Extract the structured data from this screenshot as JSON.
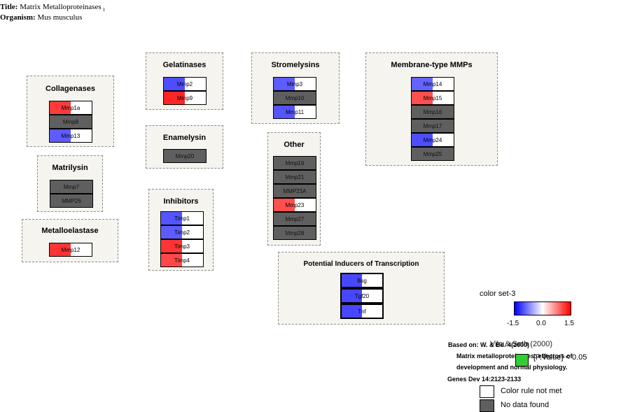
{
  "header": {
    "title_label": "Title:",
    "title": "Matrix Metalloproteinases",
    "title_sub": "1",
    "organism_label": "Organism:",
    "organism": "Mus musculus"
  },
  "colors": {
    "blue": "#0000ff",
    "red": "#ff0000",
    "no_data": "#5f5f5f",
    "box_bg": "#f5f4ee",
    "green": "#33cc33"
  },
  "groups": {
    "collagenases": {
      "title": "Collagenases",
      "genes": [
        {
          "label": "Mmp1a",
          "value": 1.2,
          "nodata": false
        },
        {
          "label": "Mmp8",
          "nodata": true
        },
        {
          "label": "Mmp13",
          "value": -0.9,
          "nodata": false
        }
      ]
    },
    "gelatinases": {
      "title": "Gelatinases",
      "genes": [
        {
          "label": "Mmp2",
          "value": -1.1,
          "nodata": false
        },
        {
          "label": "Mmp9",
          "value": 1.5,
          "nodata": false
        }
      ]
    },
    "stromelysins": {
      "title": "Stromelysins",
      "genes": [
        {
          "label": "Mmp3",
          "value": -0.9,
          "nodata": false
        },
        {
          "label": "Mmp10",
          "nodata": true
        },
        {
          "label": "Mmp11",
          "value": -1.0,
          "nodata": false
        }
      ]
    },
    "membrane": {
      "title": "Membrane-type MMPs",
      "genes": [
        {
          "label": "Mmp14",
          "value": -0.8,
          "nodata": false
        },
        {
          "label": "Mmp15",
          "value": 0.9,
          "nodata": false
        },
        {
          "label": "Mmp16",
          "nodata": true
        },
        {
          "label": "Mmp17",
          "nodata": true
        },
        {
          "label": "Mmp24",
          "value": -1.1,
          "nodata": false
        },
        {
          "label": "Mmp25",
          "nodata": true
        }
      ]
    },
    "enamelysin": {
      "title": "Enamelysin",
      "genes": [
        {
          "label": "Mmp20",
          "nodata": true
        }
      ]
    },
    "other": {
      "title": "Other",
      "genes": [
        {
          "label": "Mmp19",
          "nodata": true
        },
        {
          "label": "Mmp21",
          "nodata": true
        },
        {
          "label": "MMP23A",
          "nodata": true
        },
        {
          "label": "Mmp23",
          "value": 0.9,
          "nodata": false
        },
        {
          "label": "Mmp27",
          "nodata": true
        },
        {
          "label": "Mmp28",
          "nodata": true
        }
      ]
    },
    "matrilysin": {
      "title": "Matrilysin",
      "genes": [
        {
          "label": "Mmp7",
          "nodata": true
        },
        {
          "label": "MMP26",
          "nodata": true
        }
      ]
    },
    "inhibitors": {
      "title": "Inhibitors",
      "genes": [
        {
          "label": "Timp1",
          "value": -1.0,
          "nodata": false
        },
        {
          "label": "Timp2",
          "value": -0.9,
          "nodata": false
        },
        {
          "label": "Timp3",
          "value": 1.3,
          "nodata": false
        },
        {
          "label": "Timp4",
          "value": 1.0,
          "nodata": false
        }
      ]
    },
    "metalloelastase": {
      "title": "Metalloelastase",
      "genes": [
        {
          "label": "Mmp12",
          "value": 1.3,
          "nodata": false
        }
      ]
    },
    "inducers": {
      "title": "Potential Inducers of Transcription",
      "genes": [
        {
          "label": "Bsg",
          "value": -1.2,
          "nodata": false
        },
        {
          "label": "Tgf20",
          "value": -1.2,
          "nodata": false
        },
        {
          "label": "Tnf",
          "value": -1.2,
          "nodata": false
        }
      ]
    }
  },
  "legend": {
    "title": "color set-3",
    "min": "-1.5",
    "mid": "0.0",
    "max": "1.5",
    "gene_label": "Vila & Seth (2000)",
    "pvalue_label": "[P.Value] < 0.05",
    "rule_not_met": "Color rule not met",
    "no_data": "No data found"
  },
  "citation": {
    "line1": "Based on: W. & Bd. 4(2000)",
    "line2": "Matrix metalloproteinases: effectors of",
    "line3": "development and normal physiology.",
    "line4": "Genes Dev 14:2123-2133"
  }
}
